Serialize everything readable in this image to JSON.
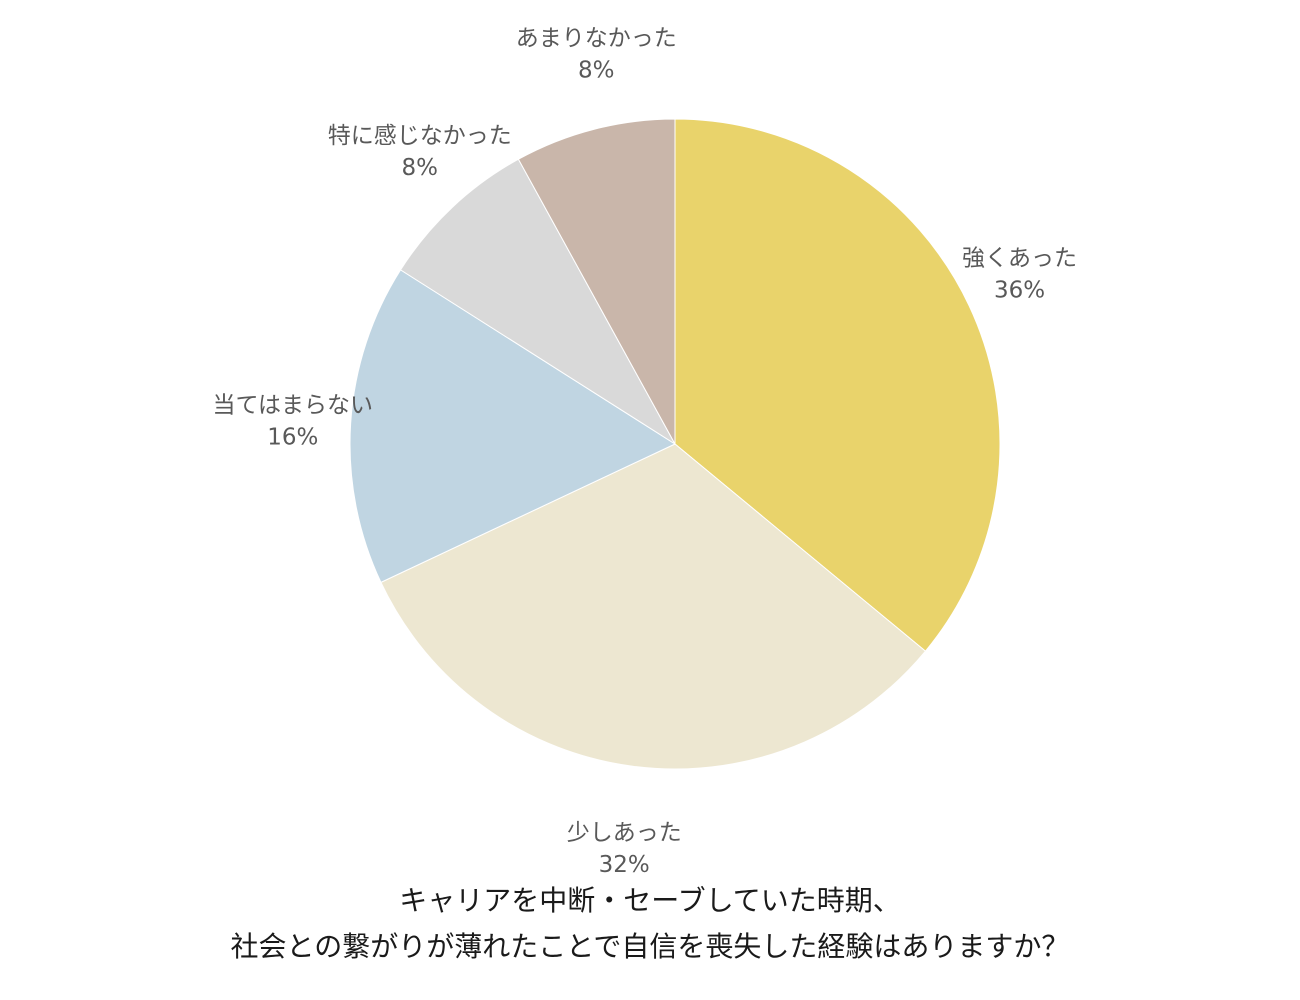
{
  "chart_data": {
    "type": "pie",
    "title_lines": [
      "キャリアを中断・セーブしていた時期、",
      "社会との繋がりが薄れたことで自信を喪失した経験はありますか？"
    ],
    "start_angle": "12 o'clock",
    "direction": "clockwise",
    "slices": [
      {
        "label": "強くあった",
        "value": 36,
        "display": "36%",
        "color": "#E9D36B"
      },
      {
        "label": "少しあった",
        "value": 32,
        "display": "32%",
        "color": "#EDE7D1"
      },
      {
        "label": "当てはまらない",
        "value": 16,
        "display": "16%",
        "color": "#C0D5E2"
      },
      {
        "label": "特に感じなかった",
        "value": 8,
        "display": "8%",
        "color": "#D9D9D9"
      },
      {
        "label": "あまりなかった",
        "value": 8,
        "display": "8%",
        "color": "#C9B6AA"
      }
    ]
  }
}
